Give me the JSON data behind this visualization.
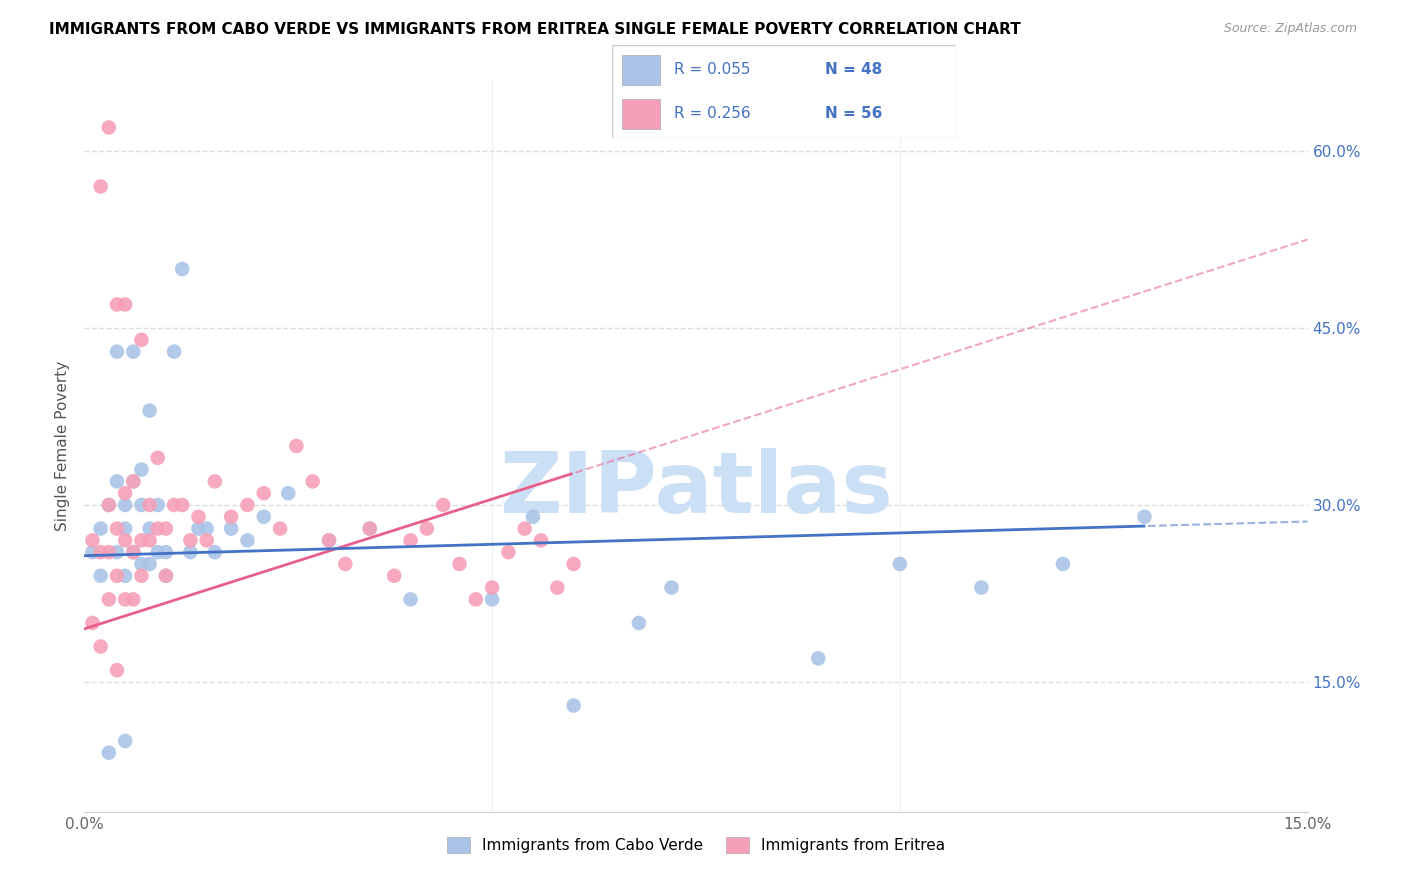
{
  "title": "IMMIGRANTS FROM CABO VERDE VS IMMIGRANTS FROM ERITREA SINGLE FEMALE POVERTY CORRELATION CHART",
  "source": "Source: ZipAtlas.com",
  "ylabel": "Single Female Poverty",
  "xlim": [
    0.0,
    0.15
  ],
  "ylim": [
    0.04,
    0.66
  ],
  "yticklabels_right": [
    "15.0%",
    "30.0%",
    "45.0%",
    "60.0%"
  ],
  "yticks_right": [
    0.15,
    0.3,
    0.45,
    0.6
  ],
  "cabo_verde_color": "#aac4e8",
  "eritrea_color": "#f5a0b8",
  "cabo_verde_line_color": "#4472c4",
  "eritrea_line_color": "#e8608a",
  "watermark_color": "#cce0f5",
  "cabo_verde_x": [
    0.001,
    0.002,
    0.002,
    0.003,
    0.003,
    0.004,
    0.004,
    0.005,
    0.005,
    0.005,
    0.005,
    0.006,
    0.006,
    0.007,
    0.007,
    0.007,
    0.008,
    0.008,
    0.009,
    0.009,
    0.01,
    0.011,
    0.012,
    0.013,
    0.014,
    0.015,
    0.016,
    0.018,
    0.02,
    0.022,
    0.025,
    0.03,
    0.035,
    0.04,
    0.05,
    0.055,
    0.06,
    0.068,
    0.072,
    0.09,
    0.1,
    0.11,
    0.12,
    0.13,
    0.004,
    0.006,
    0.008,
    0.01
  ],
  "cabo_verde_y": [
    0.26,
    0.24,
    0.28,
    0.09,
    0.3,
    0.26,
    0.32,
    0.24,
    0.3,
    0.28,
    0.1,
    0.32,
    0.26,
    0.25,
    0.33,
    0.3,
    0.25,
    0.28,
    0.26,
    0.3,
    0.24,
    0.43,
    0.5,
    0.26,
    0.28,
    0.28,
    0.26,
    0.28,
    0.27,
    0.29,
    0.31,
    0.27,
    0.28,
    0.22,
    0.22,
    0.29,
    0.13,
    0.2,
    0.23,
    0.17,
    0.25,
    0.23,
    0.25,
    0.29,
    0.43,
    0.43,
    0.38,
    0.26
  ],
  "eritrea_x": [
    0.001,
    0.001,
    0.002,
    0.002,
    0.003,
    0.003,
    0.003,
    0.004,
    0.004,
    0.004,
    0.005,
    0.005,
    0.005,
    0.006,
    0.006,
    0.007,
    0.007,
    0.008,
    0.008,
    0.009,
    0.009,
    0.01,
    0.01,
    0.011,
    0.012,
    0.013,
    0.014,
    0.015,
    0.016,
    0.018,
    0.02,
    0.022,
    0.024,
    0.026,
    0.028,
    0.03,
    0.032,
    0.035,
    0.038,
    0.04,
    0.042,
    0.044,
    0.046,
    0.048,
    0.05,
    0.052,
    0.054,
    0.056,
    0.058,
    0.06,
    0.002,
    0.003,
    0.004,
    0.005,
    0.006,
    0.007
  ],
  "eritrea_y": [
    0.27,
    0.2,
    0.18,
    0.26,
    0.22,
    0.3,
    0.26,
    0.16,
    0.24,
    0.28,
    0.31,
    0.27,
    0.22,
    0.26,
    0.32,
    0.27,
    0.24,
    0.27,
    0.3,
    0.28,
    0.34,
    0.28,
    0.24,
    0.3,
    0.3,
    0.27,
    0.29,
    0.27,
    0.32,
    0.29,
    0.3,
    0.31,
    0.28,
    0.35,
    0.32,
    0.27,
    0.25,
    0.28,
    0.24,
    0.27,
    0.28,
    0.3,
    0.25,
    0.22,
    0.23,
    0.26,
    0.28,
    0.27,
    0.23,
    0.25,
    0.57,
    0.62,
    0.47,
    0.47,
    0.22,
    0.44
  ]
}
